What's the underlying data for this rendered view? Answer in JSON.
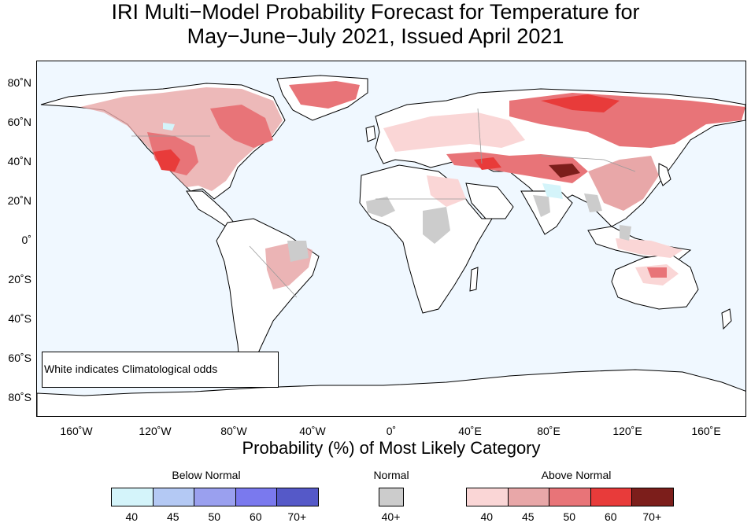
{
  "title_line1": "IRI Multi−Model Probability Forecast for Temperature for",
  "title_line2": "May−June−July 2021, Issued April 2021",
  "lat_labels": [
    "80˚N",
    "60˚N",
    "40˚N",
    "20˚N",
    "0˚",
    "20˚S",
    "40˚S",
    "60˚S",
    "80˚S"
  ],
  "lon_labels": [
    "160˚W",
    "120˚W",
    "80˚W",
    "40˚W",
    "0˚",
    "40˚E",
    "80˚E",
    "120˚E",
    "160˚E"
  ],
  "note": "White indicates Climatological odds",
  "xlabel": "Probability (%) of Most Likely Category",
  "legend": {
    "below": {
      "title": "Below Normal",
      "levels": [
        "40",
        "45",
        "50",
        "60",
        "70+"
      ],
      "colors": [
        "#d4f4fa",
        "#b4c9f4",
        "#9aa0ef",
        "#7a79ee",
        "#5559c8"
      ]
    },
    "normal": {
      "title": "Normal",
      "levels": [
        "40+"
      ],
      "colors": [
        "#cccccc"
      ]
    },
    "above": {
      "title": "Above Normal",
      "levels": [
        "40",
        "45",
        "50",
        "60",
        "70+"
      ],
      "colors": [
        "#fad6d6",
        "#e8a7a8",
        "#e87478",
        "#e83b3a",
        "#7c1e1b"
      ]
    }
  },
  "map_colors": {
    "ocean": "#f0f8ff",
    "land": "#ffffff",
    "coast": "#000000",
    "border": "#9a9a9a"
  }
}
